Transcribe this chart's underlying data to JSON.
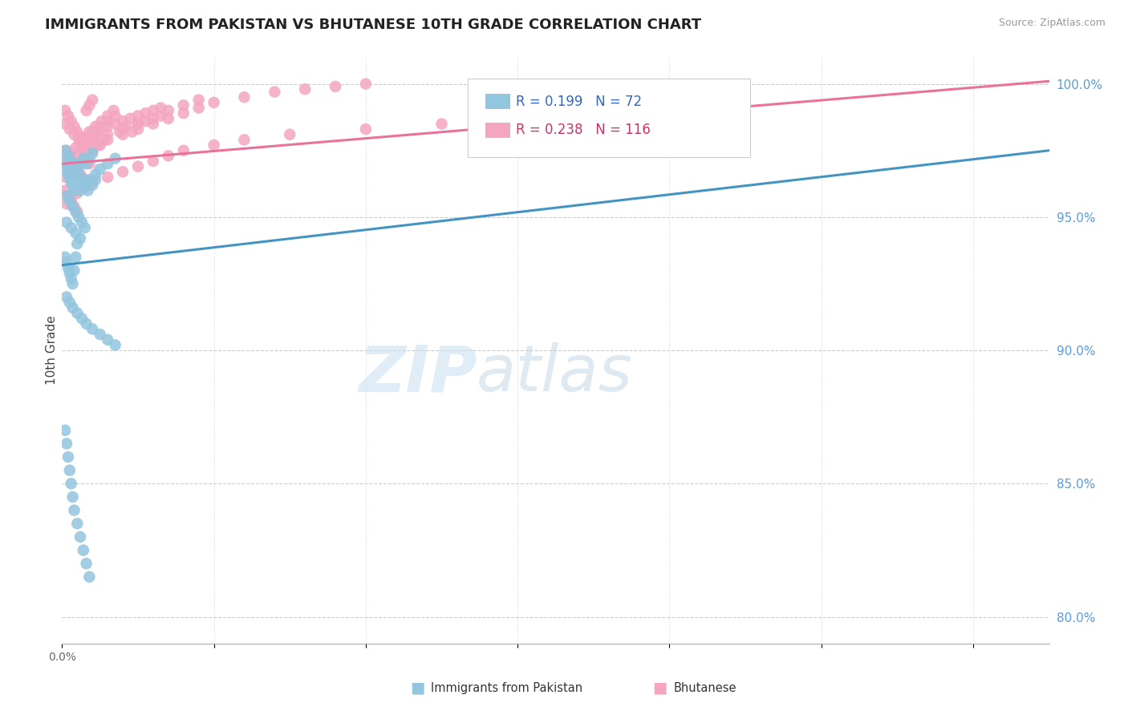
{
  "title": "IMMIGRANTS FROM PAKISTAN VS BHUTANESE 10TH GRADE CORRELATION CHART",
  "source_text": "Source: ZipAtlas.com",
  "ylabel_text": "10th Grade",
  "xlim": [
    0.0,
    0.065
  ],
  "ylim": [
    0.79,
    1.01
  ],
  "right_yticks": [
    1.0,
    0.95,
    0.9,
    0.85,
    0.8
  ],
  "right_ytick_labels": [
    "100.0%",
    "95.0%",
    "90.0%",
    "85.0%",
    "80.0%"
  ],
  "pakistan_color": "#92C5DE",
  "bhutanese_color": "#F4A6C0",
  "pakistan_line_color": "#4393C3",
  "bhutanese_line_color": "#E8729A",
  "R_pakistan": 0.199,
  "N_pakistan": 72,
  "R_bhutanese": 0.238,
  "N_bhutanese": 116,
  "pakistan_x": [
    0.0002,
    0.0003,
    0.0004,
    0.0005,
    0.0006,
    0.0007,
    0.0008,
    0.001,
    0.0012,
    0.0014,
    0.0003,
    0.0005,
    0.0007,
    0.0009,
    0.0011,
    0.0013,
    0.0015,
    0.0017,
    0.002,
    0.0022,
    0.0002,
    0.0004,
    0.0006,
    0.0008,
    0.001,
    0.0012,
    0.0014,
    0.0016,
    0.0018,
    0.002,
    0.0003,
    0.0006,
    0.0009,
    0.0012,
    0.0015,
    0.0018,
    0.0022,
    0.0025,
    0.003,
    0.0035,
    0.0002,
    0.0003,
    0.0004,
    0.0005,
    0.0006,
    0.0007,
    0.0008,
    0.0009,
    0.001,
    0.0012,
    0.0003,
    0.0005,
    0.0007,
    0.001,
    0.0013,
    0.0016,
    0.002,
    0.0025,
    0.003,
    0.0035,
    0.0002,
    0.0003,
    0.0004,
    0.0005,
    0.0006,
    0.0007,
    0.0008,
    0.001,
    0.0012,
    0.0014,
    0.0016,
    0.0018
  ],
  "pakistan_y": [
    0.97,
    0.968,
    0.966,
    0.965,
    0.963,
    0.962,
    0.96,
    0.968,
    0.97,
    0.972,
    0.958,
    0.956,
    0.954,
    0.952,
    0.95,
    0.948,
    0.946,
    0.96,
    0.962,
    0.964,
    0.975,
    0.973,
    0.971,
    0.969,
    0.967,
    0.965,
    0.963,
    0.97,
    0.972,
    0.974,
    0.948,
    0.946,
    0.944,
    0.96,
    0.962,
    0.964,
    0.966,
    0.968,
    0.97,
    0.972,
    0.935,
    0.933,
    0.931,
    0.929,
    0.927,
    0.925,
    0.93,
    0.935,
    0.94,
    0.942,
    0.92,
    0.918,
    0.916,
    0.914,
    0.912,
    0.91,
    0.908,
    0.906,
    0.904,
    0.902,
    0.87,
    0.865,
    0.86,
    0.855,
    0.85,
    0.845,
    0.84,
    0.835,
    0.83,
    0.825,
    0.82,
    0.815
  ],
  "bhutanese_x": [
    0.0002,
    0.0004,
    0.0006,
    0.0008,
    0.001,
    0.0012,
    0.0014,
    0.0016,
    0.0018,
    0.002,
    0.0003,
    0.0005,
    0.0007,
    0.0009,
    0.0011,
    0.0013,
    0.0015,
    0.0017,
    0.002,
    0.0022,
    0.0002,
    0.0005,
    0.0008,
    0.0011,
    0.0014,
    0.0017,
    0.002,
    0.0025,
    0.003,
    0.0035,
    0.0004,
    0.0008,
    0.0012,
    0.0016,
    0.002,
    0.0024,
    0.0028,
    0.003,
    0.004,
    0.005,
    0.0002,
    0.0004,
    0.0006,
    0.0008,
    0.001,
    0.0012,
    0.0014,
    0.0016,
    0.0018,
    0.002,
    0.0022,
    0.0025,
    0.003,
    0.0035,
    0.004,
    0.0045,
    0.005,
    0.0055,
    0.006,
    0.0065,
    0.0003,
    0.0006,
    0.0009,
    0.0012,
    0.0015,
    0.0018,
    0.0022,
    0.0026,
    0.003,
    0.0034,
    0.0038,
    0.0042,
    0.0046,
    0.005,
    0.0055,
    0.006,
    0.0065,
    0.007,
    0.008,
    0.009,
    0.0002,
    0.0005,
    0.0008,
    0.001,
    0.0015,
    0.002,
    0.0025,
    0.003,
    0.004,
    0.005,
    0.006,
    0.007,
    0.008,
    0.009,
    0.01,
    0.012,
    0.014,
    0.016,
    0.018,
    0.02,
    0.0003,
    0.0006,
    0.001,
    0.0015,
    0.002,
    0.003,
    0.004,
    0.005,
    0.006,
    0.007,
    0.008,
    0.01,
    0.012,
    0.015,
    0.02,
    0.025
  ],
  "bhutanese_y": [
    0.99,
    0.988,
    0.986,
    0.984,
    0.982,
    0.98,
    0.978,
    0.99,
    0.992,
    0.994,
    0.975,
    0.973,
    0.971,
    0.969,
    0.967,
    0.965,
    0.975,
    0.977,
    0.979,
    0.981,
    0.985,
    0.983,
    0.981,
    0.979,
    0.977,
    0.975,
    0.982,
    0.984,
    0.986,
    0.988,
    0.97,
    0.968,
    0.966,
    0.964,
    0.975,
    0.977,
    0.979,
    0.981,
    0.983,
    0.985,
    0.96,
    0.958,
    0.956,
    0.954,
    0.952,
    0.975,
    0.977,
    0.979,
    0.97,
    0.98,
    0.981,
    0.983,
    0.984,
    0.985,
    0.986,
    0.987,
    0.988,
    0.989,
    0.99,
    0.991,
    0.972,
    0.974,
    0.976,
    0.978,
    0.98,
    0.982,
    0.984,
    0.986,
    0.988,
    0.99,
    0.982,
    0.984,
    0.982,
    0.985,
    0.986,
    0.987,
    0.988,
    0.99,
    0.992,
    0.994,
    0.965,
    0.967,
    0.969,
    0.971,
    0.973,
    0.975,
    0.977,
    0.979,
    0.981,
    0.983,
    0.985,
    0.987,
    0.989,
    0.991,
    0.993,
    0.995,
    0.997,
    0.998,
    0.999,
    1.0,
    0.955,
    0.957,
    0.959,
    0.961,
    0.963,
    0.965,
    0.967,
    0.969,
    0.971,
    0.973,
    0.975,
    0.977,
    0.979,
    0.981,
    0.983,
    0.985
  ]
}
